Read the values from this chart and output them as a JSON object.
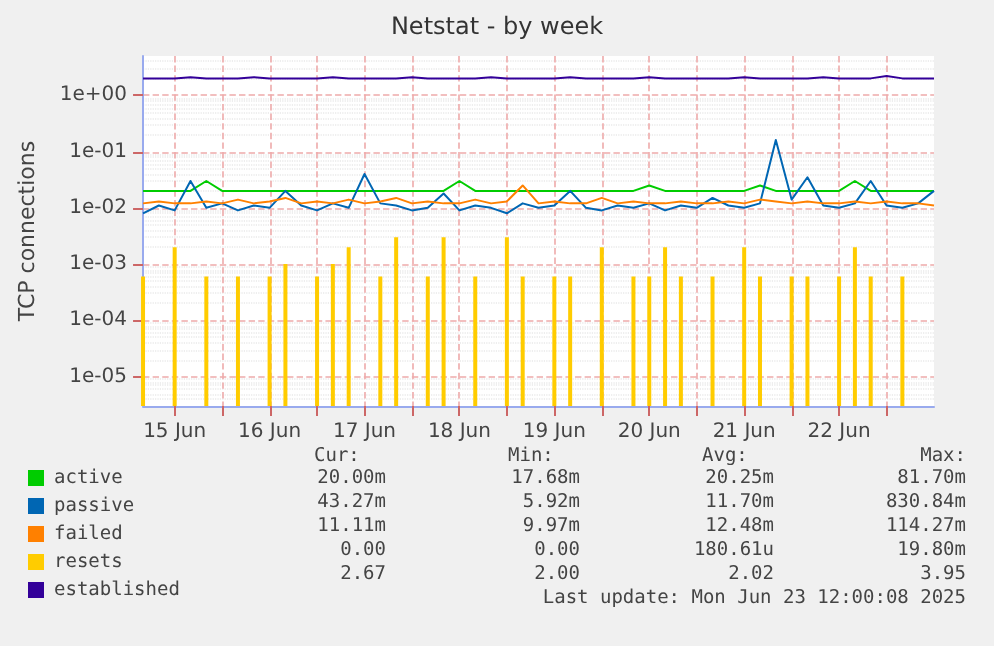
{
  "chart_data": {
    "type": "line",
    "title": "Netstat - by week",
    "ylabel": "TCP connections",
    "log": "y",
    "grid": true,
    "legend": "bottom left",
    "marker": "none",
    "line_style": "solid",
    "xlim": [
      "2025-06-15T04:00",
      "2025-06-23T12:00"
    ],
    "xticks": [
      {
        "value": "2025-06-15T12:00",
        "label": "15 Jun"
      },
      {
        "value": "2025-06-16T00:00",
        "label": null
      },
      {
        "value": "2025-06-16T12:00",
        "label": "16 Jun"
      },
      {
        "value": "2025-06-17T00:00",
        "label": null
      },
      {
        "value": "2025-06-17T12:00",
        "label": "17 Jun"
      },
      {
        "value": "2025-06-18T00:00",
        "label": null
      },
      {
        "value": "2025-06-18T12:00",
        "label": "18 Jun"
      },
      {
        "value": "2025-06-19T00:00",
        "label": null
      },
      {
        "value": "2025-06-19T12:00",
        "label": "19 Jun"
      },
      {
        "value": "2025-06-20T00:00",
        "label": null
      },
      {
        "value": "2025-06-20T12:00",
        "label": "20 Jun"
      },
      {
        "value": "2025-06-21T00:00",
        "label": null
      },
      {
        "value": "2025-06-21T12:00",
        "label": "21 Jun"
      },
      {
        "value": "2025-06-22T00:00",
        "label": null
      },
      {
        "value": "2025-06-22T12:00",
        "label": "22 Jun"
      },
      {
        "value": "2025-06-23T00:00",
        "label": null
      }
    ],
    "ylim": [
      3e-06,
      5
    ],
    "yticks": [
      {
        "value": 1e-05,
        "label": "1e-05"
      },
      {
        "value": 0.0001,
        "label": "1e-04"
      },
      {
        "value": 0.001,
        "label": "1e-03"
      },
      {
        "value": 0.01,
        "label": "1e-02"
      },
      {
        "value": 0.1,
        "label": "1e-01"
      },
      {
        "value": 1,
        "label": "1e+00"
      }
    ],
    "x": [
      "2025-06-15T04:00",
      "2025-06-15T08:00",
      "2025-06-15T12:00",
      "2025-06-15T16:00",
      "2025-06-15T20:00",
      "2025-06-16T00:00",
      "2025-06-16T04:00",
      "2025-06-16T08:00",
      "2025-06-16T12:00",
      "2025-06-16T16:00",
      "2025-06-16T20:00",
      "2025-06-17T00:00",
      "2025-06-17T04:00",
      "2025-06-17T08:00",
      "2025-06-17T12:00",
      "2025-06-17T16:00",
      "2025-06-17T20:00",
      "2025-06-18T00:00",
      "2025-06-18T04:00",
      "2025-06-18T08:00",
      "2025-06-18T12:00",
      "2025-06-18T16:00",
      "2025-06-18T20:00",
      "2025-06-19T00:00",
      "2025-06-19T04:00",
      "2025-06-19T08:00",
      "2025-06-19T12:00",
      "2025-06-19T16:00",
      "2025-06-19T20:00",
      "2025-06-20T00:00",
      "2025-06-20T04:00",
      "2025-06-20T08:00",
      "2025-06-20T12:00",
      "2025-06-20T16:00",
      "2025-06-20T20:00",
      "2025-06-21T00:00",
      "2025-06-21T04:00",
      "2025-06-21T08:00",
      "2025-06-21T12:00",
      "2025-06-21T16:00",
      "2025-06-21T20:00",
      "2025-06-22T00:00",
      "2025-06-22T04:00",
      "2025-06-22T08:00",
      "2025-06-22T12:00",
      "2025-06-22T16:00",
      "2025-06-22T20:00",
      "2025-06-23T00:00",
      "2025-06-23T04:00",
      "2025-06-23T08:00",
      "2025-06-23T12:00"
    ],
    "series": [
      {
        "name": "active",
        "color": "#00cc00",
        "values": [
          0.02,
          0.02,
          0.02,
          0.02,
          0.03,
          0.02,
          0.02,
          0.02,
          0.02,
          0.02,
          0.02,
          0.02,
          0.02,
          0.02,
          0.02,
          0.02,
          0.02,
          0.02,
          0.02,
          0.02,
          0.03,
          0.02,
          0.02,
          0.02,
          0.02,
          0.02,
          0.02,
          0.02,
          0.02,
          0.02,
          0.02,
          0.02,
          0.025,
          0.02,
          0.02,
          0.02,
          0.02,
          0.02,
          0.02,
          0.025,
          0.02,
          0.02,
          0.02,
          0.02,
          0.02,
          0.03,
          0.02,
          0.02,
          0.02,
          0.02,
          0.02
        ]
      },
      {
        "name": "passive",
        "color": "#0066b3",
        "values": [
          0.008,
          0.011,
          0.009,
          0.03,
          0.01,
          0.012,
          0.009,
          0.011,
          0.01,
          0.02,
          0.011,
          0.009,
          0.012,
          0.01,
          0.04,
          0.012,
          0.011,
          0.009,
          0.01,
          0.018,
          0.009,
          0.011,
          0.01,
          0.008,
          0.012,
          0.01,
          0.011,
          0.02,
          0.01,
          0.009,
          0.011,
          0.01,
          0.012,
          0.009,
          0.011,
          0.01,
          0.015,
          0.011,
          0.01,
          0.012,
          0.16,
          0.014,
          0.035,
          0.011,
          0.01,
          0.012,
          0.03,
          0.011,
          0.01,
          0.012,
          0.02
        ]
      },
      {
        "name": "failed",
        "color": "#ff8000",
        "values": [
          0.012,
          0.013,
          0.012,
          0.012,
          0.013,
          0.012,
          0.014,
          0.012,
          0.013,
          0.015,
          0.012,
          0.013,
          0.012,
          0.014,
          0.012,
          0.013,
          0.015,
          0.012,
          0.013,
          0.012,
          0.012,
          0.014,
          0.012,
          0.013,
          0.025,
          0.012,
          0.013,
          0.012,
          0.012,
          0.015,
          0.012,
          0.013,
          0.012,
          0.012,
          0.013,
          0.012,
          0.012,
          0.013,
          0.012,
          0.014,
          0.013,
          0.012,
          0.013,
          0.012,
          0.012,
          0.013,
          0.012,
          0.013,
          0.012,
          0.012,
          0.011
        ]
      },
      {
        "name": "resets",
        "color": "#ffcc00",
        "type": "bar",
        "values": [
          0.0006,
          null,
          0.002,
          null,
          0.0006,
          null,
          0.0006,
          null,
          0.0006,
          0.001,
          null,
          0.0006,
          0.001,
          0.002,
          null,
          0.0006,
          0.003,
          null,
          0.0006,
          0.003,
          null,
          0.0006,
          null,
          0.003,
          0.0006,
          null,
          0.0006,
          0.0006,
          null,
          0.002,
          null,
          0.0006,
          0.0006,
          0.002,
          0.0006,
          null,
          0.0006,
          null,
          0.002,
          0.0006,
          null,
          0.0006,
          0.0006,
          null,
          0.0006,
          0.002,
          0.0006,
          null,
          0.0006,
          null,
          null
        ]
      },
      {
        "name": "established",
        "color": "#330099",
        "values": [
          2,
          2,
          2,
          2.1,
          2,
          2,
          2,
          2.1,
          2,
          2,
          2,
          2,
          2.1,
          2,
          2,
          2,
          2,
          2.1,
          2,
          2,
          2,
          2,
          2.1,
          2,
          2,
          2,
          2,
          2.1,
          2,
          2,
          2,
          2,
          2.1,
          2,
          2,
          2,
          2,
          2,
          2.1,
          2,
          2,
          2,
          2,
          2.1,
          2,
          2,
          2,
          2.2,
          2,
          2,
          2
        ]
      }
    ],
    "annotations": [
      "Cur:",
      "Min:",
      "Avg:",
      "Max:",
      "20.00m",
      "17.68m",
      "20.25m",
      "81.70m",
      "43.27m",
      "5.92m",
      "11.70m",
      "830.84m",
      "11.11m",
      "9.97m",
      "12.48m",
      "114.27m",
      "0.00",
      "0.00",
      "180.61u",
      "19.80m",
      "2.67",
      "2.00",
      "2.02",
      "3.95",
      "Last update: Mon Jun 23 12:00:08 2025"
    ]
  }
}
